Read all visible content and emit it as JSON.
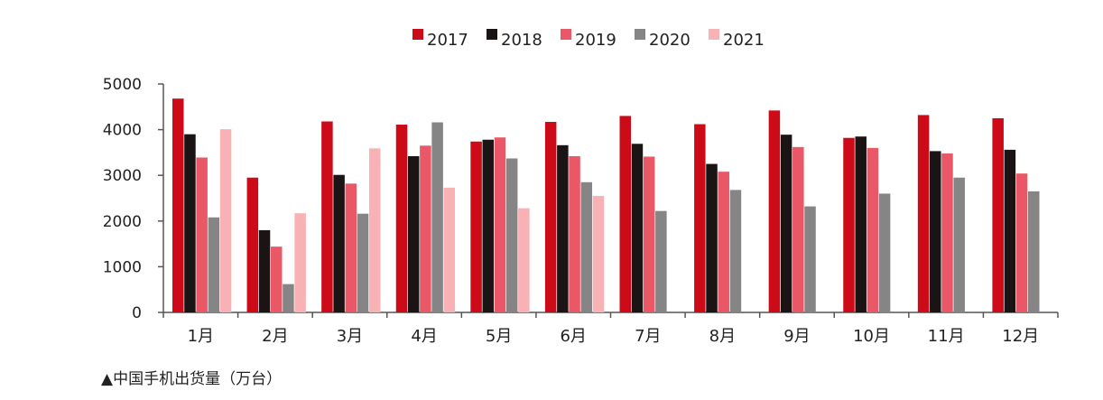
{
  "caption": "▲中国手机出货量（万台）",
  "chart_data": {
    "type": "bar",
    "title": "",
    "xlabel": "",
    "ylabel": "",
    "ylim": [
      0,
      5000
    ],
    "yticks": [
      "0",
      "1000",
      "2000",
      "3000",
      "4000",
      "5000"
    ],
    "legend_position": "top",
    "grid": false,
    "categories": [
      "1月",
      "2月",
      "3月",
      "4月",
      "5月",
      "6月",
      "7月",
      "8月",
      "9月",
      "10月",
      "11月",
      "12月"
    ],
    "series": [
      {
        "name": "2017",
        "color": "#cc0a18",
        "values": [
          4680,
          2950,
          4180,
          4110,
          3740,
          4170,
          4300,
          4120,
          4420,
          3820,
          4320,
          4250
        ]
      },
      {
        "name": "2018",
        "color": "#1a1414",
        "values": [
          3900,
          1800,
          3010,
          3420,
          3780,
          3660,
          3690,
          3250,
          3890,
          3850,
          3530,
          3560
        ]
      },
      {
        "name": "2019",
        "color": "#ea5867",
        "values": [
          3390,
          1440,
          2820,
          3650,
          3830,
          3420,
          3410,
          3080,
          3620,
          3600,
          3480,
          3040
        ]
      },
      {
        "name": "2020",
        "color": "#858585",
        "values": [
          2080,
          620,
          2160,
          4160,
          3370,
          2850,
          2220,
          2680,
          2320,
          2600,
          2950,
          2650
        ]
      },
      {
        "name": "2021",
        "color": "#f8b1b5",
        "values": [
          4010,
          2170,
          3590,
          2730,
          2280,
          2550,
          null,
          null,
          null,
          null,
          null,
          null
        ]
      }
    ]
  }
}
